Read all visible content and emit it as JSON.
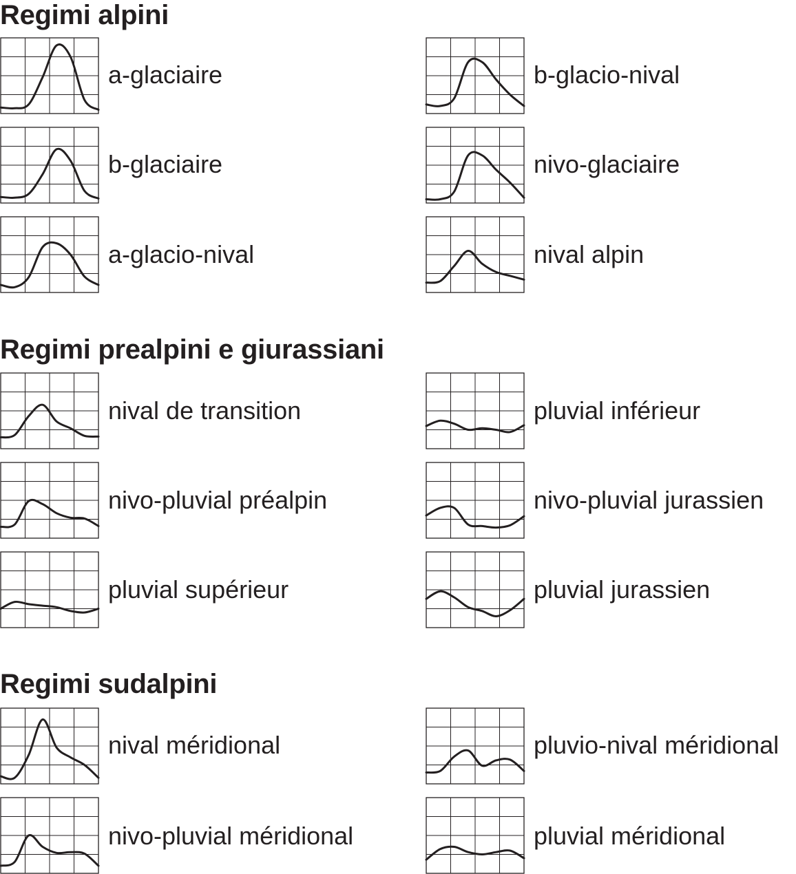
{
  "sections": [
    {
      "title": "Regimi alpini",
      "charts": [
        {
          "label": "a-glaciaire",
          "values": [
            0.08,
            0.07,
            0.12,
            0.48,
            0.9,
            0.75,
            0.18,
            0.05
          ]
        },
        {
          "label": "b-glacio-nival",
          "values": [
            0.12,
            0.1,
            0.2,
            0.68,
            0.68,
            0.45,
            0.25,
            0.1
          ]
        },
        {
          "label": "b-glaciaire",
          "values": [
            0.08,
            0.07,
            0.12,
            0.38,
            0.71,
            0.56,
            0.16,
            0.06
          ]
        },
        {
          "label": "nivo-glaciaire",
          "values": [
            0.05,
            0.05,
            0.15,
            0.63,
            0.63,
            0.44,
            0.27,
            0.07
          ]
        },
        {
          "label": "a-glacio-nival",
          "values": [
            0.1,
            0.07,
            0.2,
            0.6,
            0.65,
            0.5,
            0.21,
            0.1
          ]
        },
        {
          "label": "nival alpin",
          "values": [
            0.13,
            0.15,
            0.35,
            0.55,
            0.38,
            0.27,
            0.22,
            0.17
          ]
        }
      ]
    },
    {
      "title": "Regimi prealpini e giurassiani",
      "charts": [
        {
          "label": "nival de transition",
          "values": [
            0.15,
            0.18,
            0.43,
            0.58,
            0.36,
            0.27,
            0.17,
            0.16
          ]
        },
        {
          "label": "pluvial inférieur",
          "values": [
            0.3,
            0.37,
            0.33,
            0.25,
            0.27,
            0.25,
            0.22,
            0.31
          ]
        },
        {
          "label": "nivo-pluvial préalpin",
          "values": [
            0.15,
            0.18,
            0.49,
            0.45,
            0.33,
            0.27,
            0.26,
            0.16
          ]
        },
        {
          "label": "nivo-pluvial jurassien",
          "values": [
            0.3,
            0.4,
            0.4,
            0.18,
            0.16,
            0.14,
            0.17,
            0.29
          ]
        },
        {
          "label": "pluvial supérieur",
          "values": [
            0.25,
            0.34,
            0.31,
            0.29,
            0.27,
            0.22,
            0.2,
            0.25
          ]
        },
        {
          "label": "pluvial jurassien",
          "values": [
            0.38,
            0.48,
            0.4,
            0.27,
            0.22,
            0.15,
            0.23,
            0.38
          ]
        }
      ]
    },
    {
      "title": "Regimi sudalpini",
      "charts": [
        {
          "label": "nival méridional",
          "values": [
            0.1,
            0.08,
            0.38,
            0.85,
            0.48,
            0.35,
            0.25,
            0.08
          ]
        },
        {
          "label": "pluvio-nival méridional",
          "values": [
            0.15,
            0.17,
            0.36,
            0.44,
            0.24,
            0.31,
            0.32,
            0.17
          ]
        },
        {
          "label": "nivo-pluvial méridional",
          "values": [
            0.1,
            0.15,
            0.5,
            0.35,
            0.27,
            0.28,
            0.26,
            0.1
          ]
        },
        {
          "label": "pluvial méridional",
          "values": [
            0.18,
            0.32,
            0.35,
            0.28,
            0.25,
            0.28,
            0.3,
            0.2
          ]
        }
      ]
    }
  ],
  "chart_data": {
    "type": "line",
    "grid": true,
    "ylim": [
      0,
      1
    ],
    "series": [
      {
        "name": "a-glaciaire",
        "values": [
          0.08,
          0.07,
          0.12,
          0.48,
          0.9,
          0.75,
          0.18,
          0.05
        ]
      },
      {
        "name": "b-glacio-nival",
        "values": [
          0.12,
          0.1,
          0.2,
          0.68,
          0.68,
          0.45,
          0.25,
          0.1
        ]
      },
      {
        "name": "b-glaciaire",
        "values": [
          0.08,
          0.07,
          0.12,
          0.38,
          0.71,
          0.56,
          0.16,
          0.06
        ]
      },
      {
        "name": "nivo-glaciaire",
        "values": [
          0.05,
          0.05,
          0.15,
          0.63,
          0.63,
          0.44,
          0.27,
          0.07
        ]
      },
      {
        "name": "a-glacio-nival",
        "values": [
          0.1,
          0.07,
          0.2,
          0.6,
          0.65,
          0.5,
          0.21,
          0.1
        ]
      },
      {
        "name": "nival alpin",
        "values": [
          0.13,
          0.15,
          0.35,
          0.55,
          0.38,
          0.27,
          0.22,
          0.17
        ]
      },
      {
        "name": "nival de transition",
        "values": [
          0.15,
          0.18,
          0.43,
          0.58,
          0.36,
          0.27,
          0.17,
          0.16
        ]
      },
      {
        "name": "pluvial inférieur",
        "values": [
          0.3,
          0.37,
          0.33,
          0.25,
          0.27,
          0.25,
          0.22,
          0.31
        ]
      },
      {
        "name": "nivo-pluvial préalpin",
        "values": [
          0.15,
          0.18,
          0.49,
          0.45,
          0.33,
          0.27,
          0.26,
          0.16
        ]
      },
      {
        "name": "nivo-pluvial jurassien",
        "values": [
          0.3,
          0.4,
          0.4,
          0.18,
          0.16,
          0.14,
          0.17,
          0.29
        ]
      },
      {
        "name": "pluvial supérieur",
        "values": [
          0.25,
          0.34,
          0.31,
          0.29,
          0.27,
          0.22,
          0.2,
          0.25
        ]
      },
      {
        "name": "pluvial jurassien",
        "values": [
          0.38,
          0.48,
          0.4,
          0.27,
          0.22,
          0.15,
          0.23,
          0.38
        ]
      },
      {
        "name": "nival méridional",
        "values": [
          0.1,
          0.08,
          0.38,
          0.85,
          0.48,
          0.35,
          0.25,
          0.08
        ]
      },
      {
        "name": "pluvio-nival méridional",
        "values": [
          0.15,
          0.17,
          0.36,
          0.44,
          0.24,
          0.31,
          0.32,
          0.17
        ]
      },
      {
        "name": "nivo-pluvial méridional",
        "values": [
          0.1,
          0.15,
          0.5,
          0.35,
          0.27,
          0.28,
          0.26,
          0.1
        ]
      },
      {
        "name": "pluvial méridional",
        "values": [
          0.18,
          0.32,
          0.35,
          0.28,
          0.25,
          0.28,
          0.3,
          0.2
        ]
      }
    ]
  },
  "colors": {
    "line": "#231f20",
    "grid": "#231f20",
    "background": "#ffffff"
  }
}
